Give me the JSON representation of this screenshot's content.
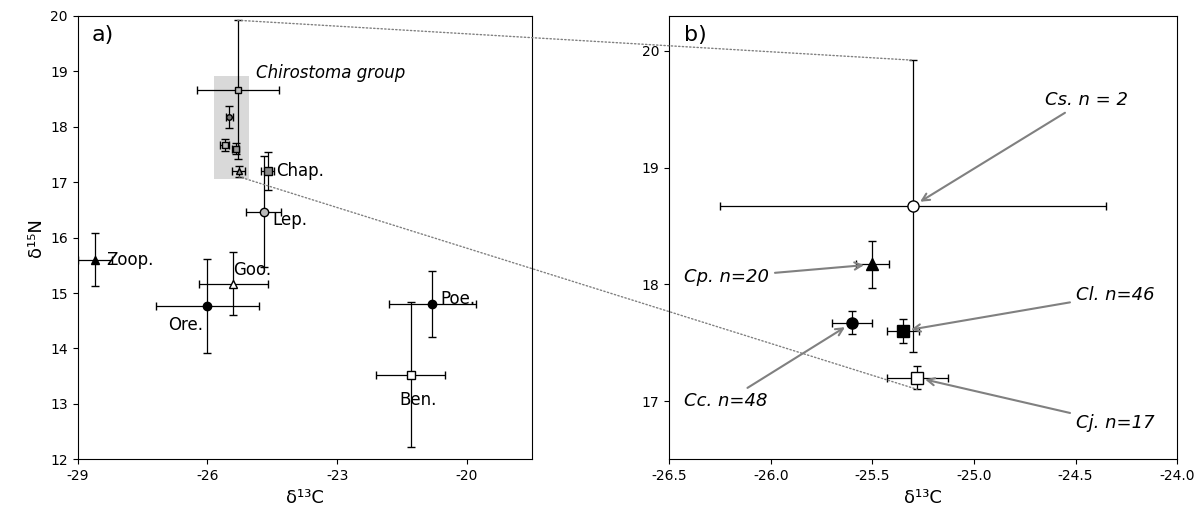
{
  "chart_data": [
    {
      "type": "scatter",
      "panel_label": "a)",
      "x_label": "δ¹³C",
      "y_label": "δ¹⁵N",
      "xlim": [
        -29,
        -18.5
      ],
      "xticks": [
        -29,
        -26,
        -23,
        -20
      ],
      "ylim": [
        12,
        20
      ],
      "yticks": [
        12,
        13,
        14,
        15,
        16,
        17,
        18,
        19,
        20
      ],
      "group_label": "Chirostoma group",
      "series": [
        {
          "name": "Zoop.",
          "x": [
            -28.6
          ],
          "values": [
            15.6
          ],
          "xerr": [
            0.4
          ],
          "yerr": [
            0.48
          ],
          "color": "black",
          "marker": "triangle"
        },
        {
          "name": "Ore.",
          "x": [
            -26.0
          ],
          "values": [
            14.77
          ],
          "xerr": [
            1.2
          ],
          "yerr": [
            0.85
          ],
          "color": "black",
          "marker": "circle"
        },
        {
          "name": "Goo.",
          "x": [
            -25.4
          ],
          "values": [
            15.17
          ],
          "xerr": [
            0.8
          ],
          "yerr": [
            0.57
          ],
          "color": "white",
          "marker": "triangle"
        },
        {
          "name": "Chap.",
          "x": [
            -24.6
          ],
          "values": [
            17.2
          ],
          "xerr": [
            0.15
          ],
          "yerr": [
            0.35
          ],
          "color": "#888888",
          "marker": "square"
        },
        {
          "name": "Lep.",
          "x": [
            -24.7
          ],
          "values": [
            16.47
          ],
          "xerr": [
            0.4
          ],
          "yerr": [
            1.0
          ],
          "color": "#bbbbbb",
          "marker": "circle"
        },
        {
          "name": "Poe.",
          "x": [
            -20.8
          ],
          "values": [
            14.8
          ],
          "xerr": [
            1.0
          ],
          "yerr": [
            0.6
          ],
          "color": "black",
          "marker": "circle"
        },
        {
          "name": "Ben.",
          "x": [
            -21.3
          ],
          "values": [
            13.53
          ],
          "xerr": [
            0.8
          ],
          "yerr": [
            1.3
          ],
          "color": "white",
          "marker": "square"
        },
        {
          "x": [
            -25.3
          ],
          "values": [
            18.67
          ],
          "xerr": [
            0.95
          ],
          "yerr": [
            1.25
          ],
          "color": "#bbbbbb",
          "marker": "square"
        },
        {
          "x": [
            -25.5
          ],
          "values": [
            18.17
          ],
          "xerr": [
            0.08
          ],
          "yerr": [
            0.2
          ],
          "color": "#777777",
          "marker": "circle"
        },
        {
          "x": [
            -25.6
          ],
          "values": [
            17.67
          ],
          "xerr": [
            0.1
          ],
          "yerr": [
            0.1
          ],
          "color": "#bbbbbb",
          "marker": "square"
        },
        {
          "x": [
            -25.35
          ],
          "values": [
            17.6
          ],
          "xerr": [
            0.08
          ],
          "yerr": [
            0.1
          ],
          "color": "#999999",
          "marker": "square"
        },
        {
          "x": [
            -25.28
          ],
          "values": [
            17.2
          ],
          "xerr": [
            0.15
          ],
          "yerr": [
            0.1
          ],
          "color": "#999999",
          "marker": "triangle"
        }
      ]
    },
    {
      "type": "scatter",
      "panel_label": "b)",
      "x_label": "δ¹³C",
      "xlim": [
        -26.5,
        -24.0
      ],
      "xticks": [
        -26.5,
        -26.0,
        -25.5,
        -25.0,
        -24.5,
        -24.0
      ],
      "ylim": [
        16.5,
        20.3
      ],
      "yticks": [
        17,
        18,
        19,
        20
      ],
      "series": [
        {
          "name": "Cs. n = 2",
          "x": [
            -25.3
          ],
          "values": [
            18.67
          ],
          "xerr": [
            0.95
          ],
          "yerr": [
            1.25
          ],
          "color": "white",
          "marker": "circle"
        },
        {
          "name": "Cp. n=20",
          "x": [
            -25.5
          ],
          "values": [
            18.17
          ],
          "xerr": [
            0.08
          ],
          "yerr": [
            0.2
          ],
          "color": "black",
          "marker": "triangle"
        },
        {
          "name": "Cc. n=48",
          "x": [
            -25.6
          ],
          "values": [
            17.67
          ],
          "xerr": [
            0.1
          ],
          "yerr": [
            0.1
          ],
          "color": "black",
          "marker": "circle"
        },
        {
          "name": "Cl. n=46",
          "x": [
            -25.35
          ],
          "values": [
            17.6
          ],
          "xerr": [
            0.08
          ],
          "yerr": [
            0.1
          ],
          "color": "black",
          "marker": "square"
        },
        {
          "name": "Cj. n=17",
          "x": [
            -25.28
          ],
          "values": [
            17.2
          ],
          "xerr": [
            0.15
          ],
          "yerr": [
            0.1
          ],
          "color": "white",
          "marker": "square"
        }
      ]
    }
  ]
}
